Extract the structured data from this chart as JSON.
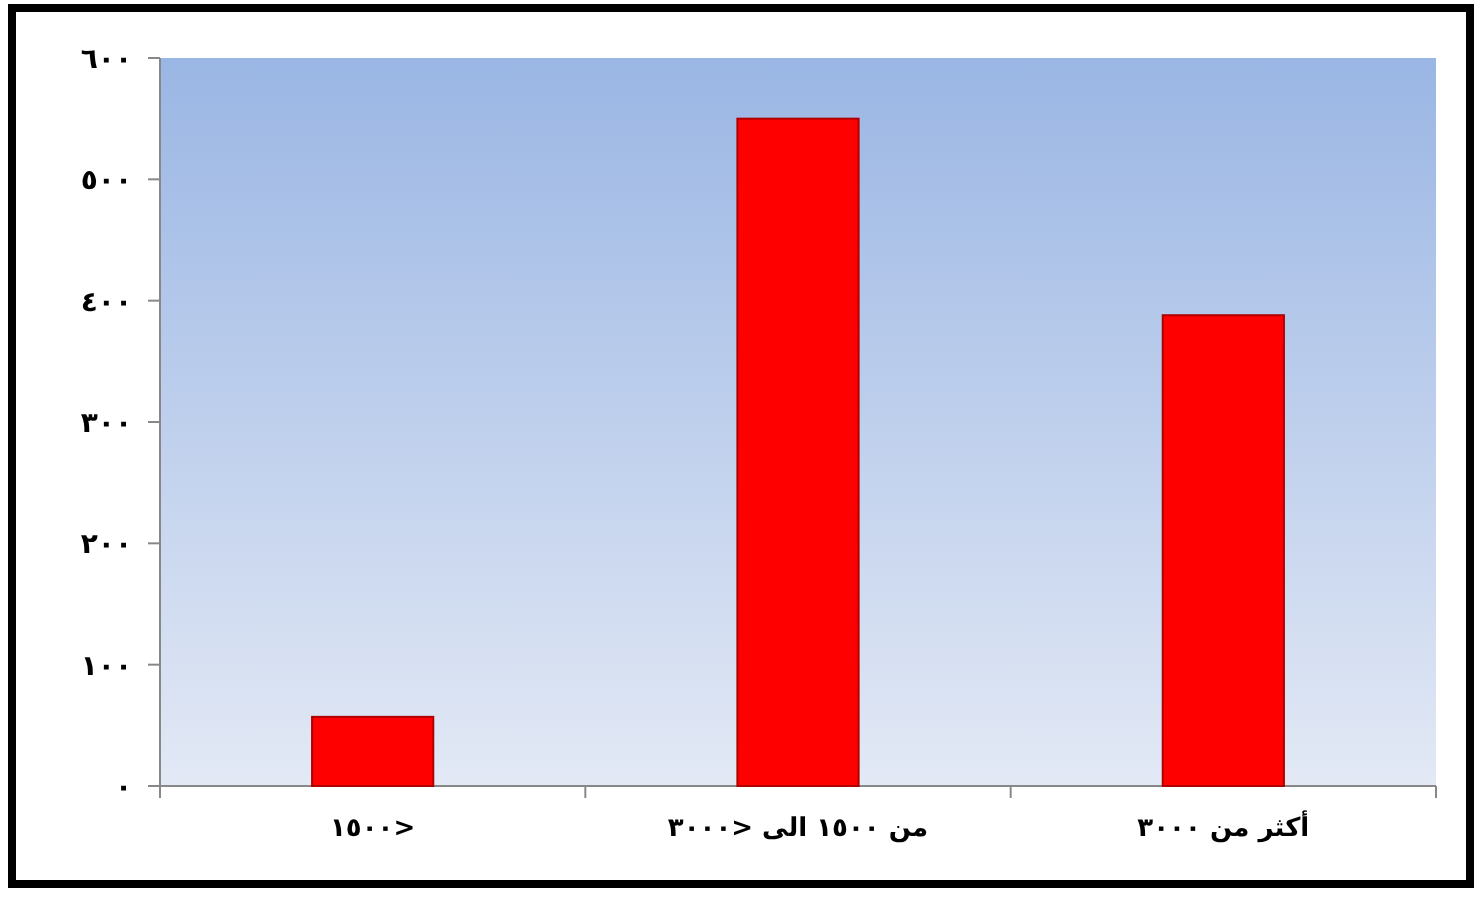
{
  "chart_data": {
    "type": "bar",
    "categories": [
      "<١٥٠٠",
      "من ١٥٠٠ الى <٣٠٠٠",
      "أكثر من ٣٠٠٠"
    ],
    "values": [
      57,
      550,
      388
    ],
    "color": "#ff0000",
    "ylim": [
      0,
      600
    ],
    "yticks": [
      {
        "value": 0,
        "label": "٠"
      },
      {
        "value": 100,
        "label": "١٠٠"
      },
      {
        "value": 200,
        "label": "٢٠٠"
      },
      {
        "value": 300,
        "label": "٣٠٠"
      },
      {
        "value": 400,
        "label": "٤٠٠"
      },
      {
        "value": 500,
        "label": "٥٠٠"
      },
      {
        "value": 600,
        "label": "٦٠٠"
      }
    ],
    "grid": false
  }
}
